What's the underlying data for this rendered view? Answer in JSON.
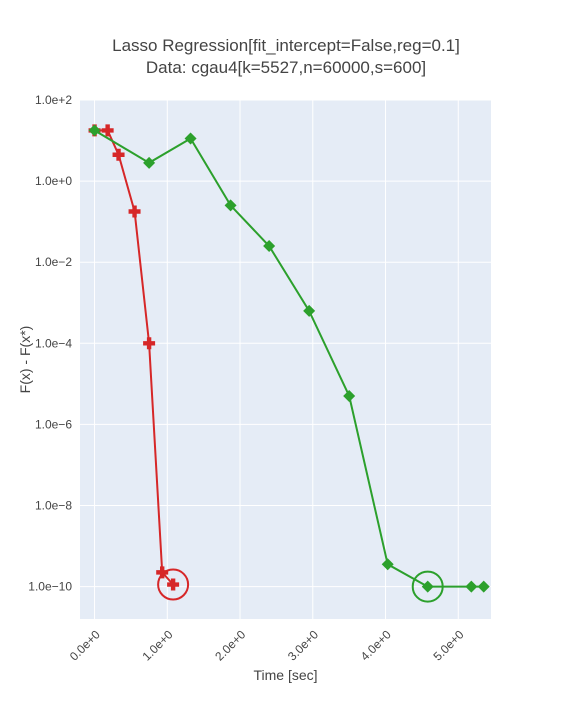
{
  "chart_data": {
    "type": "line",
    "title_line1": "Lasso Regression[fit_intercept=False,reg=0.1]",
    "title_line2": "Data: cgau4[k=5527,n=60000,s=600]",
    "xlabel": "Time [sec]",
    "ylabel": "F(x) - F(x*)",
    "xlim": [
      -0.2,
      5.45
    ],
    "ylim_log10": [
      -10.8,
      2.0
    ],
    "yscale": "log",
    "grid": true,
    "x_ticks": [
      0,
      1,
      2,
      3,
      4,
      5
    ],
    "x_tick_labels": [
      "0.0e+0",
      "1.0e+0",
      "2.0e+0",
      "3.0e+0",
      "4.0e+0",
      "5.0e+0"
    ],
    "y_ticks_log10": [
      2,
      0,
      -2,
      -4,
      -6,
      -8,
      -10
    ],
    "y_tick_labels": [
      "1.0e+2",
      "1.0e+0",
      "1.0e−2",
      "1.0e−4",
      "1.0e−6",
      "1.0e−8",
      "1.0e−10"
    ],
    "series": [
      {
        "color": "#d62728",
        "marker": "cross",
        "x": [
          0.0,
          0.18,
          0.33,
          0.55,
          0.75,
          0.93,
          1.08
        ],
        "y_log10": [
          1.25,
          1.25,
          0.65,
          -0.75,
          -4.0,
          -9.65,
          -9.95
        ],
        "highlight_index": 6
      },
      {
        "color": "#2ca02c",
        "marker": "diamond",
        "x": [
          0.0,
          0.75,
          1.32,
          1.87,
          2.4,
          2.95,
          3.5,
          4.03,
          4.58,
          5.18,
          5.35
        ],
        "y_log10": [
          1.25,
          0.45,
          1.05,
          -0.6,
          -1.6,
          -3.2,
          -5.3,
          -9.45,
          -10.0,
          -10.0,
          -10.0
        ],
        "highlight_index": 8
      }
    ]
  }
}
